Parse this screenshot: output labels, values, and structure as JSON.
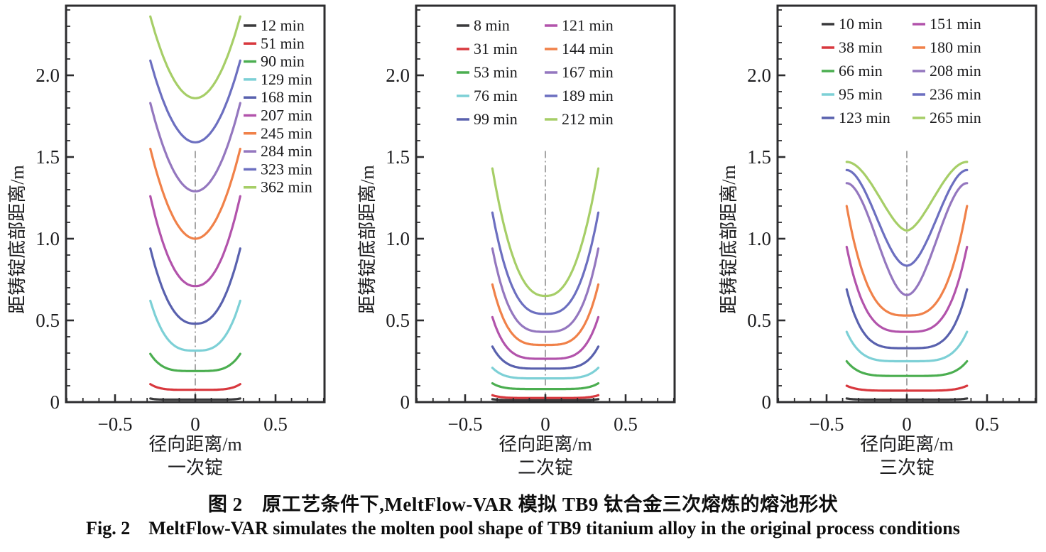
{
  "figure": {
    "caption_zh": "图 2　原工艺条件下,MeltFlow-VAR 模拟 TB9 钛合金三次熔炼的熔池形状",
    "caption_en": "Fig. 2　MeltFlow-VAR simulates the molten pool shape of TB9 titanium alloy in the original process conditions"
  },
  "palette": {
    "axis": "#2d2d2f",
    "centerline": "#8f8f8f"
  },
  "chart_data": [
    {
      "type": "line",
      "subtitle": "一次锭",
      "xlabel": "径向距离/m",
      "ylabel": "距铸锭底部距离/m",
      "xlim": [
        -0.81,
        0.81
      ],
      "ylim": [
        0,
        2.43
      ],
      "x_ticks": [
        -0.5,
        0,
        0.5
      ],
      "x_tick_labels": [
        "−0.5",
        "0",
        "0.5"
      ],
      "y_ticks": [
        0,
        0.5,
        1.0,
        1.5,
        2.0
      ],
      "y_tick_labels": [
        "0",
        "0.5",
        "1.0",
        "1.5",
        "2.0"
      ],
      "minor_step": 0.1,
      "grid": false,
      "legend_position": "top-right-single-column",
      "pool_radius_m": 0.28,
      "centerline_top": 1.55,
      "series": [
        {
          "name": "12 min",
          "color": "#3a3a3c",
          "center": 0.015,
          "edge": 0.022,
          "p": 8
        },
        {
          "name": "51 min",
          "color": "#d8383e",
          "center": 0.075,
          "edge": 0.11,
          "p": 5
        },
        {
          "name": "90 min",
          "color": "#4bae50",
          "center": 0.19,
          "edge": 0.295,
          "p": 4
        },
        {
          "name": "129 min",
          "color": "#7dd0d6",
          "center": 0.315,
          "edge": 0.62,
          "p": 3
        },
        {
          "name": "168 min",
          "color": "#5961ae",
          "center": 0.48,
          "edge": 0.94,
          "p": 2.4
        },
        {
          "name": "207 min",
          "color": "#b253ab",
          "center": 0.71,
          "edge": 1.26,
          "p": 2.2
        },
        {
          "name": "245 min",
          "color": "#f08149",
          "center": 1.0,
          "edge": 1.55,
          "p": 2
        },
        {
          "name": "284 min",
          "color": "#9477bf",
          "center": 1.29,
          "edge": 1.83,
          "p": 2
        },
        {
          "name": "323 min",
          "color": "#6c6fc0",
          "center": 1.59,
          "edge": 2.09,
          "p": 2
        },
        {
          "name": "362 min",
          "color": "#a6ce67",
          "center": 1.86,
          "edge": 2.36,
          "p": 2
        }
      ]
    },
    {
      "type": "line",
      "subtitle": "二次锭",
      "xlabel": "径向距离/m",
      "ylabel": "距铸锭底部距离/m",
      "xlim": [
        -0.81,
        0.81
      ],
      "ylim": [
        0,
        2.43
      ],
      "x_ticks": [
        -0.5,
        0,
        0.5
      ],
      "x_tick_labels": [
        "−0.5",
        "0",
        "0.5"
      ],
      "y_ticks": [
        0,
        0.5,
        1.0,
        1.5,
        2.0
      ],
      "y_tick_labels": [
        "0",
        "0.5",
        "1.0",
        "1.5",
        "2.0"
      ],
      "minor_step": 0.1,
      "grid": false,
      "legend_position": "top-center-two-columns",
      "pool_radius_m": 0.33,
      "centerline_top": 1.55,
      "series": [
        {
          "name": "8 min",
          "color": "#3a3a3c",
          "center": 0.012,
          "edge": 0.018,
          "p": 8
        },
        {
          "name": "31 min",
          "color": "#d8383e",
          "center": 0.025,
          "edge": 0.042,
          "p": 6
        },
        {
          "name": "53 min",
          "color": "#4bae50",
          "center": 0.08,
          "edge": 0.115,
          "p": 5.5
        },
        {
          "name": "76 min",
          "color": "#7dd0d6",
          "center": 0.145,
          "edge": 0.21,
          "p": 5
        },
        {
          "name": "99 min",
          "color": "#5961ae",
          "center": 0.205,
          "edge": 0.34,
          "p": 4.5
        },
        {
          "name": "121 min",
          "color": "#b253ab",
          "center": 0.265,
          "edge": 0.52,
          "p": 4
        },
        {
          "name": "144 min",
          "color": "#f08149",
          "center": 0.35,
          "edge": 0.72,
          "p": 3.6
        },
        {
          "name": "167 min",
          "color": "#9477bf",
          "center": 0.43,
          "edge": 0.94,
          "p": 3.2
        },
        {
          "name": "189 min",
          "color": "#6c6fc0",
          "center": 0.54,
          "edge": 1.16,
          "p": 2.8
        },
        {
          "name": "212 min",
          "color": "#a6ce67",
          "center": 0.65,
          "edge": 1.43,
          "p": 2.4
        }
      ]
    },
    {
      "type": "line",
      "subtitle": "三次锭",
      "xlabel": "径向距离/m",
      "ylabel": "距铸锭底部距离/m",
      "xlim": [
        -0.81,
        0.81
      ],
      "ylim": [
        0,
        2.43
      ],
      "x_ticks": [
        -0.5,
        0,
        0.5
      ],
      "x_tick_labels": [
        "−0.5",
        "0",
        "0.5"
      ],
      "y_ticks": [
        0,
        0.5,
        1.0,
        1.5,
        2.0
      ],
      "y_tick_labels": [
        "0",
        "0.5",
        "1.0",
        "1.5",
        "2.0"
      ],
      "minor_step": 0.1,
      "grid": false,
      "legend_position": "top-center-two-columns",
      "pool_radius_m": 0.375,
      "centerline_top": 1.55,
      "series": [
        {
          "name": "10 min",
          "color": "#3a3a3c",
          "center": 0.015,
          "edge": 0.022,
          "p": 8
        },
        {
          "name": "38 min",
          "color": "#d8383e",
          "center": 0.07,
          "edge": 0.1,
          "p": 5.5
        },
        {
          "name": "66 min",
          "color": "#4bae50",
          "center": 0.16,
          "edge": 0.25,
          "p": 5
        },
        {
          "name": "95 min",
          "color": "#7dd0d6",
          "center": 0.25,
          "edge": 0.43,
          "p": 4.5
        },
        {
          "name": "123 min",
          "color": "#5961ae",
          "center": 0.33,
          "edge": 0.69,
          "p": 4
        },
        {
          "name": "151 min",
          "color": "#b253ab",
          "center": 0.43,
          "edge": 0.95,
          "p": 3.4
        },
        {
          "name": "180 min",
          "color": "#f08149",
          "center": 0.53,
          "edge": 1.2,
          "p": 3
        },
        {
          "name": "208 min",
          "color": "#9477bf",
          "center": 0.655,
          "edge": 1.34,
          "shape": "s",
          "q": 1
        },
        {
          "name": "236 min",
          "color": "#6c6fc0",
          "center": 0.835,
          "edge": 1.42,
          "shape": "s",
          "q": 1
        },
        {
          "name": "265 min",
          "color": "#a6ce67",
          "center": 1.05,
          "edge": 1.47,
          "shape": "s",
          "q": 0.9
        }
      ]
    }
  ]
}
